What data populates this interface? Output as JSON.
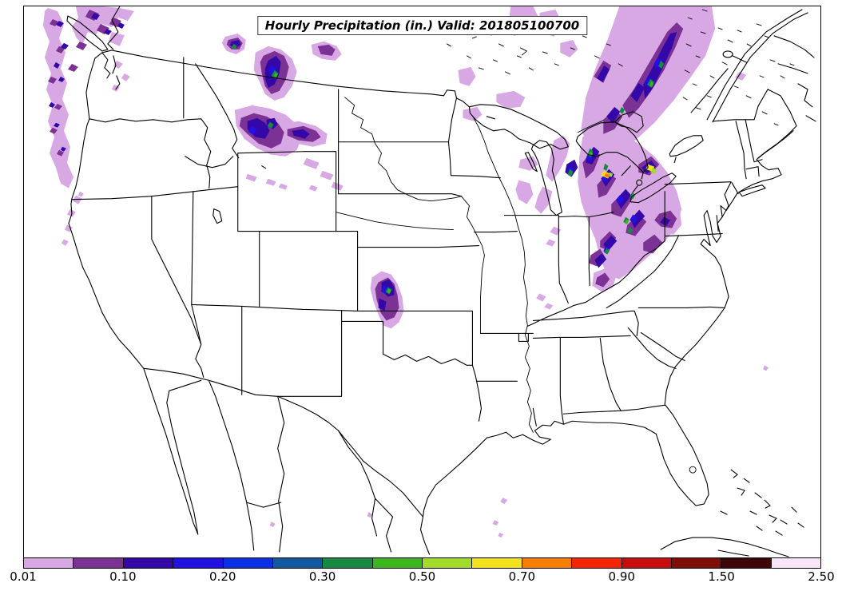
{
  "figure": {
    "title": "Hourly Precipitation (in.) Valid: 201805100700",
    "variable": "Hourly Precipitation",
    "units": "in.",
    "valid_time": "201805100700",
    "map_region": "Continental United States with southern Canada and northern Mexico"
  },
  "colorbar": {
    "labels": [
      "0.01",
      "0.10",
      "0.20",
      "0.30",
      "0.50",
      "0.70",
      "0.90",
      "1.50",
      "2.50"
    ],
    "levels": [
      0.01,
      0.05,
      0.1,
      0.15,
      0.2,
      0.25,
      0.3,
      0.4,
      0.5,
      0.6,
      0.7,
      0.8,
      0.9,
      1.0,
      1.5,
      2.0,
      2.5
    ],
    "colors": [
      "#d7a8e3",
      "#7b3294",
      "#3408a8",
      "#2110e0",
      "#0b2fe5",
      "#10589f",
      "#168a43",
      "#3bb71d",
      "#a3dc28",
      "#f3e11c",
      "#f77e00",
      "#f42300",
      "#ca0c0c",
      "#800d08",
      "#3d0708",
      "#f9e5f9"
    ]
  },
  "precip_regions": [
    {
      "area": "British Columbia / Pacific Northwest coast",
      "max_category": "0.15-0.20 in."
    },
    {
      "area": "Montana / northern Rockies",
      "max_category": "0.30-0.40 in."
    },
    {
      "area": "central Kansas",
      "max_category": "0.30-0.40 in."
    },
    {
      "area": "Great Lakes / Michigan / Ohio Valley",
      "max_category": "0.60-0.80 in."
    },
    {
      "area": "Ontario / Quebec",
      "max_category": "0.30-0.50 in."
    }
  ]
}
